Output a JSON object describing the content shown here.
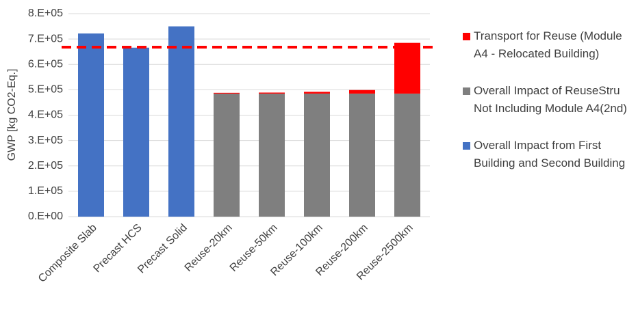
{
  "chart_data": {
    "type": "stacked_bar",
    "y_label": "GWP [kg CO2-Eq.]",
    "categories": [
      "Composite Slab",
      "Precast HCS",
      "Precast Solid",
      "Reuse-20km",
      "Reuse-50km",
      "Reuse-100km",
      "Reuse-200km",
      "Reuse-2500km"
    ],
    "series": [
      {
        "name": "Transport for Reuse (Module A4 - Relocated Building)",
        "color": "#ff0000",
        "values": [
          null,
          null,
          null,
          3000,
          4000,
          7000,
          14000,
          200000
        ]
      },
      {
        "name": "Overall Impact of ReuseStru Not Including Module A4(2nd)",
        "color": "#7f7f7f",
        "values": [
          null,
          null,
          null,
          485000,
          485000,
          485000,
          485000,
          485000
        ]
      },
      {
        "name": "Overall Impact from First Building and Second Building",
        "color": "#4472c4",
        "values": [
          722000,
          666000,
          750000,
          null,
          null,
          null,
          null,
          null
        ]
      }
    ],
    "reference_line": {
      "value": 668000,
      "color": "#ff0000"
    },
    "ylim": [
      0,
      800000
    ],
    "yticks": [
      {
        "value": 0,
        "label": "0.E+00"
      },
      {
        "value": 100000,
        "label": "1.E+05"
      },
      {
        "value": 200000,
        "label": "2.E+05"
      },
      {
        "value": 300000,
        "label": "3.E+05"
      },
      {
        "value": 400000,
        "label": "4.E+05"
      },
      {
        "value": 500000,
        "label": "5.E+05"
      },
      {
        "value": 600000,
        "label": "6.E+05"
      },
      {
        "value": 700000,
        "label": "7.E+05"
      },
      {
        "value": 800000,
        "label": "8.E+05"
      }
    ],
    "grid": true
  }
}
